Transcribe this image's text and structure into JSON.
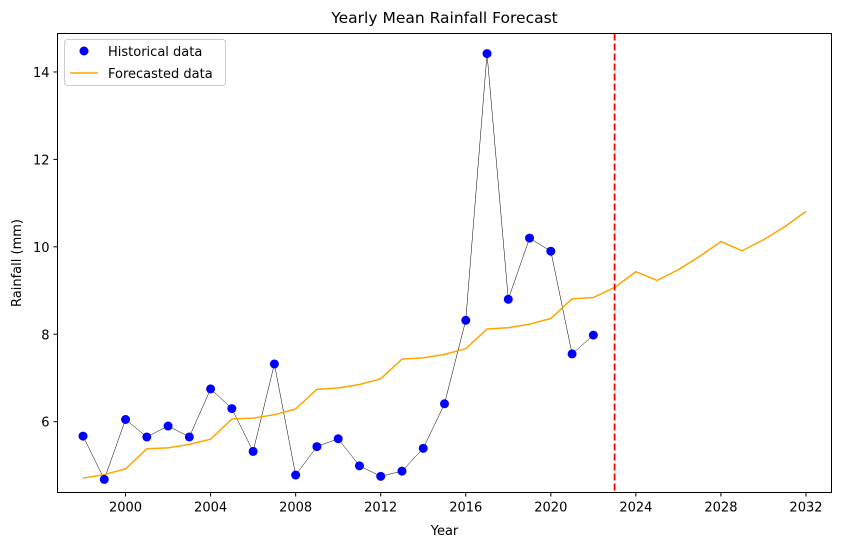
{
  "chart_data": {
    "type": "line",
    "title": "Yearly Mean Rainfall Forecast",
    "xlabel": "Year",
    "ylabel": "Rainfall (mm)",
    "xlim": [
      1996.8,
      2033.2
    ],
    "ylim": [
      4.38,
      14.88
    ],
    "xticks": [
      2000,
      2004,
      2008,
      2012,
      2016,
      2020,
      2024,
      2028,
      2032
    ],
    "yticks": [
      6,
      8,
      10,
      12,
      14
    ],
    "grid": false,
    "legend_position": "top-left",
    "vline": {
      "x": 2023,
      "color": "#ff0000",
      "style": "dashed"
    },
    "series": [
      {
        "name": "Historical data",
        "kind": "scatter-connected",
        "color": "#0000ff",
        "line_color": "#000000",
        "x": [
          1998,
          1999,
          2000,
          2001,
          2002,
          2003,
          2004,
          2005,
          2006,
          2007,
          2008,
          2009,
          2010,
          2011,
          2012,
          2013,
          2014,
          2015,
          2016,
          2017,
          2018,
          2019,
          2020,
          2021,
          2022
        ],
        "y": [
          5.67,
          4.68,
          6.05,
          5.65,
          5.9,
          5.65,
          6.75,
          6.3,
          5.32,
          7.32,
          4.78,
          5.43,
          5.61,
          4.99,
          4.75,
          4.87,
          5.39,
          6.41,
          8.32,
          14.42,
          8.8,
          10.2,
          9.9,
          7.55,
          7.98
        ]
      },
      {
        "name": "Forecasted data",
        "kind": "line",
        "color": "#ffa500",
        "x": [
          1998,
          1999,
          2000,
          2001,
          2002,
          2003,
          2004,
          2005,
          2006,
          2007,
          2008,
          2009,
          2010,
          2011,
          2012,
          2013,
          2014,
          2015,
          2016,
          2017,
          2018,
          2019,
          2020,
          2021,
          2022,
          2023,
          2024,
          2025,
          2026,
          2027,
          2028,
          2029,
          2030,
          2031,
          2032
        ],
        "y": [
          4.71,
          4.79,
          4.92,
          5.38,
          5.4,
          5.48,
          5.6,
          6.06,
          6.08,
          6.16,
          6.29,
          6.74,
          6.77,
          6.85,
          6.98,
          7.43,
          7.46,
          7.54,
          7.67,
          8.12,
          8.15,
          8.23,
          8.36,
          8.81,
          8.84,
          9.07,
          9.43,
          9.23,
          9.48,
          9.78,
          10.12,
          9.91,
          10.16,
          10.46,
          10.81
        ]
      }
    ]
  }
}
